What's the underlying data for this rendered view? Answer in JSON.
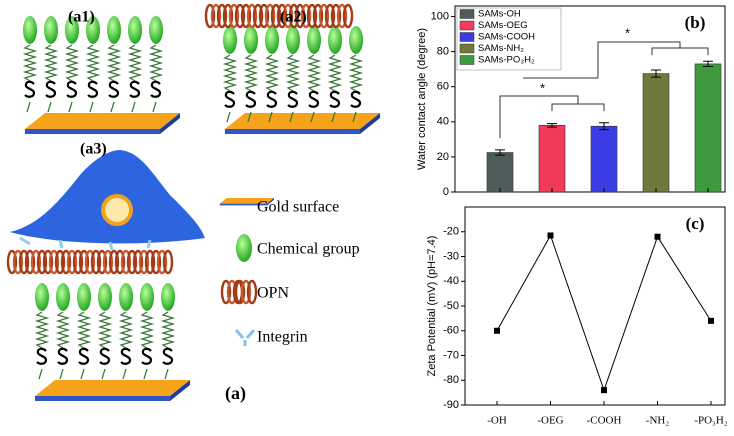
{
  "chart_data": [
    {
      "type": "bar",
      "label": "(b)",
      "y_label": "Water contact angle (degree)",
      "categories": [
        "SAMs-OH",
        "SAMs-OEG",
        "SAMs-COOH",
        "SAMs-NH₂",
        "SAMs-PO₃H₂"
      ],
      "values": [
        22.5,
        38,
        37.5,
        67.5,
        73
      ],
      "errors": [
        1.5,
        1,
        2,
        2,
        1.5
      ],
      "colors": [
        "#4e5c5c",
        "#f23a5a",
        "#3c3ce6",
        "#6e7a3c",
        "#3f9a3f"
      ],
      "ylim": [
        0,
        106
      ],
      "yticks": [
        0,
        20,
        40,
        60,
        80,
        100
      ],
      "legend": "upper left",
      "annotations": [
        "*",
        "*"
      ]
    },
    {
      "type": "line",
      "label": "(c)",
      "y_label": "Zeta Potential (mV) (pH=7.4)",
      "categories": [
        "-OH",
        "-OEG",
        "-COOH",
        "-NH₂",
        "-PO₃H₂"
      ],
      "values": [
        -60,
        -21.5,
        -84,
        -22,
        -56
      ],
      "color": "#000000",
      "ylim": [
        -90,
        -10
      ],
      "yticks": [
        -90,
        -80,
        -70,
        -60,
        -50,
        -40,
        -30,
        -20
      ]
    }
  ],
  "schematic": {
    "labels": [
      "(a1)",
      "(a2)",
      "(a3)",
      "(a)"
    ],
    "legend": [
      "Gold surface",
      "Chemical group",
      "OPN",
      "Integrin"
    ]
  }
}
